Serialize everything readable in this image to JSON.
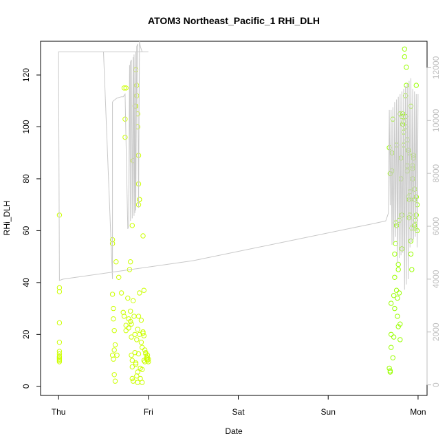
{
  "chart_data": {
    "type": "scatter",
    "title": "ATOM3 Northeast_Pacific_1 RHi_DLH",
    "xlabel": "Date",
    "ylabel": "RHi_DLH",
    "x_ticks": [
      "Thu",
      "Fri",
      "Sat",
      "Sun",
      "Mon"
    ],
    "xlim_days": [
      -0.2,
      4.1
    ],
    "ylim": [
      -3.5,
      133
    ],
    "y_ticks": [
      0,
      20,
      40,
      60,
      80,
      100,
      120
    ],
    "y2_ticks": [
      0,
      2000,
      4000,
      6000,
      8000,
      10000,
      12000
    ],
    "y2lim": [
      -400,
      13000
    ],
    "grid": false,
    "colors": {
      "points_thu_fri": "#ccff00",
      "points_mon": "#99ff00",
      "altitude_line": "#c8c8c8"
    },
    "series": [
      {
        "kind": "points",
        "color": "points_thu_fri",
        "x": [
          0.01,
          0.01,
          0.01,
          0.01,
          0.01,
          0.01,
          0.01,
          0.01,
          0.01,
          0.01,
          0.01,
          0.01,
          0.6,
          0.6,
          0.6,
          0.61,
          0.61,
          0.62,
          0.62,
          0.6,
          0.61,
          0.62,
          0.63,
          0.63,
          0.64,
          0.65,
          0.67,
          0.7,
          0.72,
          0.73,
          0.75,
          0.75,
          0.77,
          0.78,
          0.78,
          0.79,
          0.8,
          0.8,
          0.8,
          0.81,
          0.81,
          0.81,
          0.82,
          0.82,
          0.82,
          0.83,
          0.83,
          0.84,
          0.85,
          0.85,
          0.86,
          0.86,
          0.87,
          0.87,
          0.88,
          0.88,
          0.88,
          0.89,
          0.89,
          0.9,
          0.9,
          0.91,
          0.91,
          0.92,
          0.92,
          0.93,
          0.93,
          0.93,
          0.94,
          0.94,
          0.95,
          0.95,
          0.96,
          0.96,
          0.97,
          0.97,
          0.98,
          0.98,
          0.99,
          0.99,
          0.99,
          1.0,
          1.0,
          0.73,
          0.74,
          0.74,
          0.75,
          0.82,
          0.83,
          0.85,
          0.86,
          0.86,
          0.87,
          0.87,
          0.88,
          0.88,
          0.89,
          0.89,
          0.89,
          0.9,
          0.9,
          0.94,
          0.95
        ],
        "y": [
          66,
          38,
          36.5,
          24.5,
          17,
          13.5,
          12.5,
          11.5,
          11,
          10.5,
          10,
          9.5,
          56.5,
          55,
          35.5,
          30,
          26,
          21.5,
          14,
          12,
          10.5,
          4.5,
          2,
          16,
          48,
          12,
          42,
          36,
          28.5,
          27,
          23.5,
          21.5,
          34,
          26,
          22.5,
          45,
          48,
          29,
          25,
          24,
          19,
          12,
          10,
          7.5,
          3,
          33,
          2,
          27,
          20,
          13,
          9,
          8.5,
          18,
          4,
          22,
          1.5,
          5.5,
          12.5,
          27,
          20,
          36,
          7,
          3,
          17,
          25.5,
          15,
          6.5,
          1.5,
          21,
          20.5,
          19.5,
          10,
          9.5,
          14,
          13,
          12.5,
          11,
          10.5,
          12,
          11,
          10,
          10.5,
          9.5,
          115,
          103,
          96,
          115,
          62,
          87,
          108,
          122,
          108,
          112,
          116,
          105,
          100,
          78,
          70,
          89,
          72,
          72,
          58,
          37
        ]
      },
      {
        "kind": "points",
        "color": "points_mon",
        "x": [
          3.68,
          3.69,
          3.69,
          3.7,
          3.7,
          3.71,
          3.71,
          3.72,
          3.73,
          3.73,
          3.74,
          3.74,
          3.75,
          3.75,
          3.76,
          3.76,
          3.77,
          3.77,
          3.78,
          3.78,
          3.79,
          3.79,
          3.8,
          3.8,
          3.81,
          3.81,
          3.82,
          3.82,
          3.83,
          3.83,
          3.84,
          3.84,
          3.85,
          3.85,
          3.86,
          3.86,
          3.87,
          3.87,
          3.88,
          3.88,
          3.89,
          3.89,
          3.9,
          3.9,
          3.91,
          3.91,
          3.92,
          3.92,
          3.93,
          3.93,
          3.94,
          3.94,
          3.95,
          3.95,
          3.96,
          3.96,
          3.97,
          3.97,
          3.98,
          3.98,
          3.99,
          3.99,
          3.68,
          3.69,
          3.7,
          3.72,
          3.74,
          3.76,
          3.78,
          3.8,
          3.82,
          3.84,
          3.86,
          3.88,
          3.9,
          3.92,
          3.94,
          3.96,
          3.98
        ],
        "y": [
          7,
          6,
          5.5,
          32,
          20,
          90,
          83,
          103,
          35,
          19,
          51,
          42,
          63,
          55,
          93,
          62,
          34,
          27,
          47,
          23,
          64,
          36,
          24,
          18,
          88,
          80,
          66,
          53,
          105,
          101,
          98,
          93,
          130,
          127,
          112,
          104,
          116,
          123,
          85,
          83,
          91,
          73,
          72,
          65,
          75,
          66,
          56,
          51,
          61,
          45,
          85,
          80,
          89,
          88,
          76,
          72,
          64,
          61,
          116,
          73,
          70,
          60,
          92,
          82,
          15,
          11,
          30,
          37,
          45,
          105,
          104,
          102,
          100,
          95,
          90,
          108,
          84,
          62,
          66
        ]
      },
      {
        "kind": "line",
        "color": "altitude_line",
        "axis": "y2",
        "x": [
          0.0,
          0.0,
          0.01,
          0.05,
          0.5,
          0.6,
          0.6,
          0.61,
          0.63,
          0.65,
          0.7,
          0.72,
          0.74,
          0.77,
          0.78,
          0.79,
          0.8,
          0.8,
          0.81,
          0.82,
          0.83,
          0.84,
          0.84,
          0.85,
          0.86,
          0.86,
          0.87,
          0.87,
          0.88,
          0.89,
          0.9,
          0.91,
          0.92,
          0.93,
          0.94,
          0.95,
          0.96,
          0.97,
          0.98,
          0.99,
          1.0,
          1.0,
          0.5,
          0.0,
          0.01,
          0.05,
          1.5,
          2.5,
          3.5,
          3.64,
          3.65,
          3.66,
          3.67,
          3.68,
          3.69,
          3.7,
          3.71,
          3.72,
          3.73,
          3.74,
          3.75,
          3.76,
          3.77,
          3.78,
          3.79,
          3.8,
          3.81,
          3.82,
          3.83,
          3.84,
          3.85,
          3.86,
          3.87,
          3.88,
          3.89,
          3.9,
          3.91,
          3.92,
          3.93,
          3.94,
          3.95,
          3.96,
          3.97,
          3.98,
          3.99,
          4.0
        ],
        "y": [
          12600,
          12600,
          12600,
          12600,
          12600,
          4000,
          10700,
          10750,
          10800,
          10850,
          10900,
          10900,
          11000,
          5900,
          6000,
          12100,
          6200,
          12200,
          12300,
          6300,
          12400,
          6400,
          12500,
          6500,
          12600,
          6600,
          12700,
          12800,
          12900,
          6700,
          13000,
          12800,
          12700,
          12600,
          12600,
          12600,
          12600,
          12600,
          12600,
          12600,
          12600,
          12600,
          12600,
          12600,
          3950,
          4000,
          4700,
          5400,
          6100,
          6200,
          6300,
          6400,
          6500,
          10400,
          6800,
          10400,
          5300,
          10500,
          5400,
          10700,
          5600,
          10800,
          4600,
          10900,
          4800,
          11000,
          4900,
          11100,
          5000,
          11200,
          3600,
          11300,
          3800,
          11400,
          4000,
          11500,
          5200,
          11600,
          5400,
          11200,
          5500,
          11100,
          5600,
          11000,
          5200,
          11000
        ]
      }
    ]
  }
}
